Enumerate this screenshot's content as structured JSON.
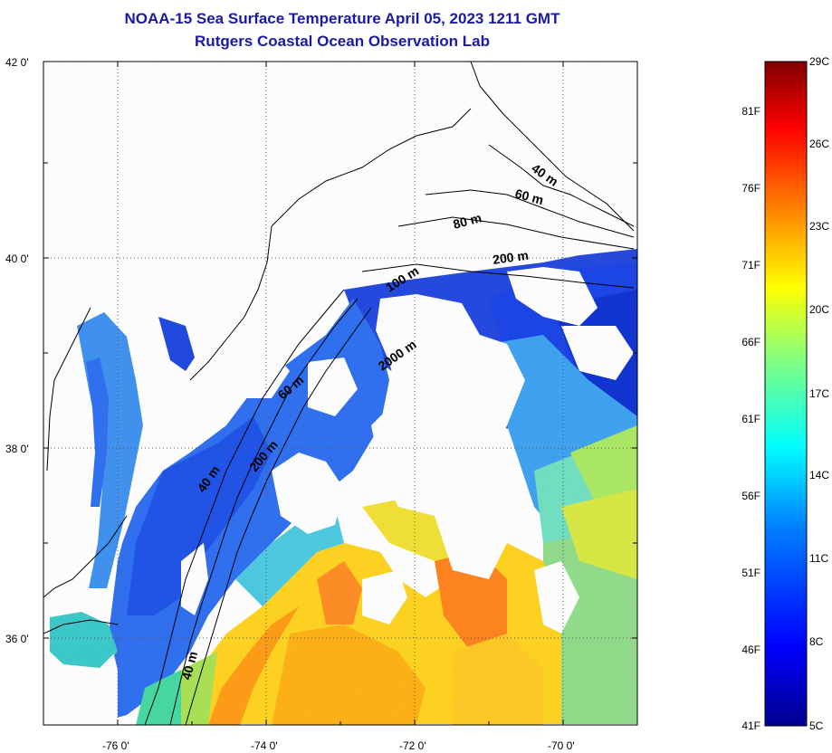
{
  "title": "NOAA-15 Sea Surface Temperature April 05, 2023 1211 GMT",
  "subtitle": "Rutgers Coastal Ocean Observation Lab",
  "map": {
    "lat_ticks": [
      "42 0'",
      "40 0'",
      "38 0'",
      "36 0'"
    ],
    "lon_ticks": [
      "-76 0'",
      "-74 0'",
      "-72 0'",
      "-70 0'"
    ],
    "lat_values": [
      42,
      40,
      38,
      36
    ],
    "lon_values": [
      -76,
      -74,
      -72,
      -70
    ],
    "lat_range": [
      35.0,
      42.0
    ],
    "lon_range": [
      -77.0,
      -69.0
    ],
    "grid": "dotted",
    "contour_labels": [
      "40 m",
      "60 m",
      "80 m",
      "200 m",
      "100 m",
      "2000 m",
      "60 m",
      "200 m",
      "40 m",
      "40 m"
    ]
  },
  "colorbar": {
    "fahrenheit_labels": [
      "81F",
      "76F",
      "71F",
      "66F",
      "61F",
      "56F",
      "51F",
      "46F",
      "41F"
    ],
    "celsius_labels": [
      "29C",
      "26C",
      "23C",
      "20C",
      "17C",
      "14C",
      "11C",
      "8C",
      "5C"
    ],
    "range_c": [
      5,
      29
    ],
    "colors": [
      "#00008f",
      "#0000ff",
      "#0080ff",
      "#00ffff",
      "#80ff80",
      "#ffff00",
      "#ff8000",
      "#ff0000",
      "#800000"
    ]
  },
  "colors": {
    "title": "#1a1aa6",
    "land": "#ffffff",
    "cloud": "#ffffff"
  }
}
